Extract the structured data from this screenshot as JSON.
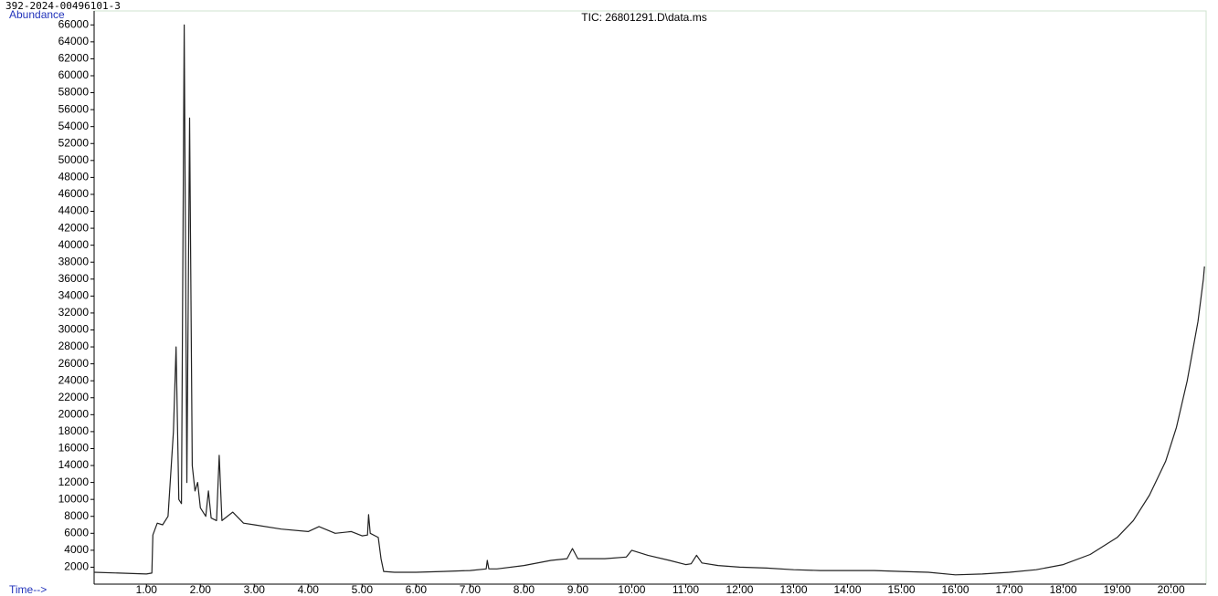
{
  "chart_data": {
    "type": "line",
    "header": "392-2024-00496101-3",
    "title": "TIC: 26801291.D\\data.ms",
    "y_label": "Abundance",
    "x_label": "Time-->",
    "color": "#222222",
    "xlim": [
      0.03,
      20.65
    ],
    "ylim": [
      0,
      67000
    ],
    "xticks": [
      {
        "value": 1,
        "label": "1.00"
      },
      {
        "value": 2,
        "label": "2.00"
      },
      {
        "value": 3,
        "label": "3.00"
      },
      {
        "value": 4,
        "label": "4.00"
      },
      {
        "value": 5,
        "label": "5.00"
      },
      {
        "value": 6,
        "label": "6.00"
      },
      {
        "value": 7,
        "label": "7.00"
      },
      {
        "value": 8,
        "label": "8.00"
      },
      {
        "value": 9,
        "label": "9.00"
      },
      {
        "value": 10,
        "label": "10.00"
      },
      {
        "value": 11,
        "label": "11.00"
      },
      {
        "value": 12,
        "label": "12.00"
      },
      {
        "value": 13,
        "label": "13.00"
      },
      {
        "value": 14,
        "label": "14.00"
      },
      {
        "value": 15,
        "label": "15.00"
      },
      {
        "value": 16,
        "label": "16.00"
      },
      {
        "value": 17,
        "label": "17.00"
      },
      {
        "value": 18,
        "label": "18.00"
      },
      {
        "value": 19,
        "label": "19.00"
      },
      {
        "value": 20,
        "label": "20.00"
      }
    ],
    "yticks": [
      2000,
      4000,
      6000,
      8000,
      10000,
      12000,
      14000,
      16000,
      18000,
      20000,
      22000,
      24000,
      26000,
      28000,
      30000,
      32000,
      34000,
      36000,
      38000,
      40000,
      42000,
      44000,
      46000,
      48000,
      50000,
      52000,
      54000,
      56000,
      58000,
      60000,
      62000,
      64000,
      66000
    ],
    "x": [
      0.03,
      0.5,
      1.0,
      1.1,
      1.12,
      1.2,
      1.3,
      1.4,
      1.5,
      1.55,
      1.6,
      1.65,
      1.7,
      1.75,
      1.8,
      1.85,
      1.9,
      1.95,
      2.0,
      2.1,
      2.15,
      2.2,
      2.3,
      2.35,
      2.4,
      2.6,
      2.8,
      3.0,
      3.5,
      4.0,
      4.2,
      4.5,
      4.8,
      5.0,
      5.1,
      5.12,
      5.15,
      5.3,
      5.35,
      5.4,
      5.6,
      6.0,
      6.5,
      7.0,
      7.3,
      7.32,
      7.35,
      7.5,
      8.0,
      8.5,
      8.8,
      8.9,
      9.0,
      9.5,
      9.9,
      10.0,
      10.3,
      10.7,
      11.0,
      11.1,
      11.2,
      11.3,
      11.6,
      12.0,
      12.5,
      13.0,
      13.5,
      14.0,
      14.5,
      15.0,
      15.5,
      16.0,
      16.5,
      17.0,
      17.5,
      18.0,
      18.5,
      19.0,
      19.3,
      19.6,
      19.9,
      20.1,
      20.3,
      20.5,
      20.6,
      20.62
    ],
    "values": [
      1400,
      1300,
      1200,
      1300,
      5800,
      7200,
      7000,
      8000,
      18000,
      28000,
      10000,
      9500,
      66000,
      12000,
      55000,
      14000,
      11000,
      12000,
      9000,
      8000,
      11000,
      7800,
      7500,
      15200,
      7500,
      8500,
      7200,
      7000,
      6500,
      6200,
      6800,
      6000,
      6200,
      5700,
      5800,
      8200,
      6000,
      5500,
      3000,
      1500,
      1400,
      1400,
      1500,
      1600,
      1800,
      2800,
      1800,
      1800,
      2200,
      2800,
      3000,
      4200,
      3000,
      3000,
      3200,
      4000,
      3400,
      2800,
      2300,
      2400,
      3400,
      2500,
      2200,
      2000,
      1900,
      1700,
      1600,
      1600,
      1600,
      1500,
      1400,
      1100,
      1200,
      1400,
      1700,
      2300,
      3500,
      5500,
      7500,
      10500,
      14500,
      18500,
      24000,
      31000,
      36000,
      37500
    ]
  }
}
